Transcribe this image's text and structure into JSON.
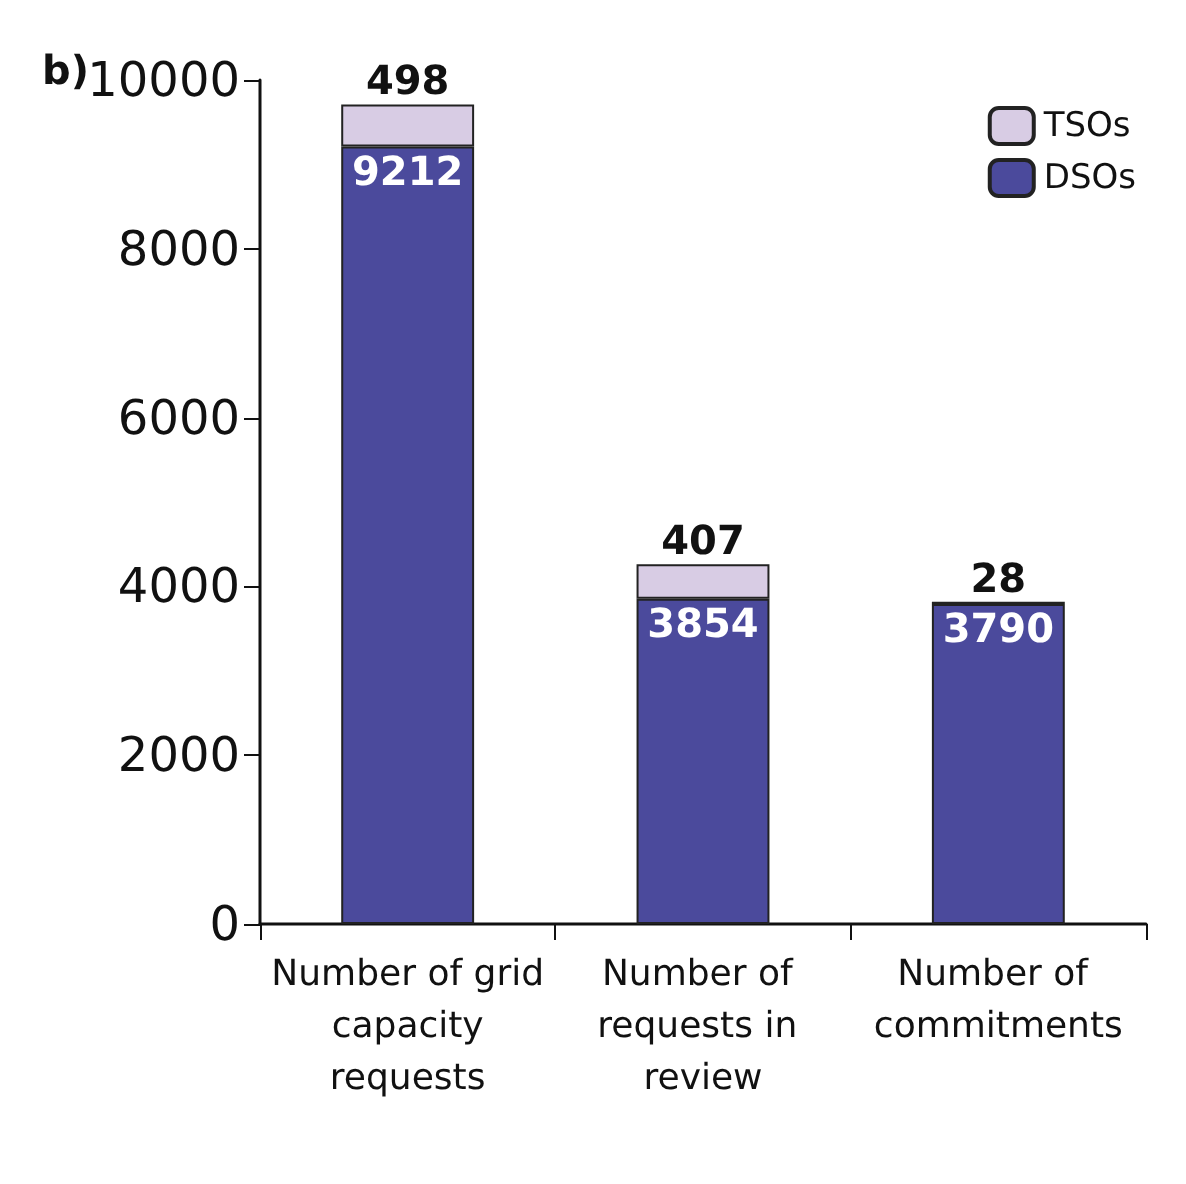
{
  "chart_data": {
    "type": "bar",
    "title": "b)",
    "stacked": true,
    "categories": [
      "Number of grid capacity requests",
      "Number of requests in review",
      "Number of commitments"
    ],
    "series": [
      {
        "name": "DSOs",
        "color": "#4b4a9c",
        "values": [
          9212,
          3854,
          3790
        ]
      },
      {
        "name": "TSOs",
        "color": "#d8cce4",
        "values": [
          498,
          407,
          28
        ]
      }
    ],
    "ylim": [
      0,
      10000
    ],
    "yticks": [
      0,
      2000,
      4000,
      6000,
      8000,
      10000
    ],
    "grid": false,
    "legend": "top right",
    "data_labels": true
  }
}
